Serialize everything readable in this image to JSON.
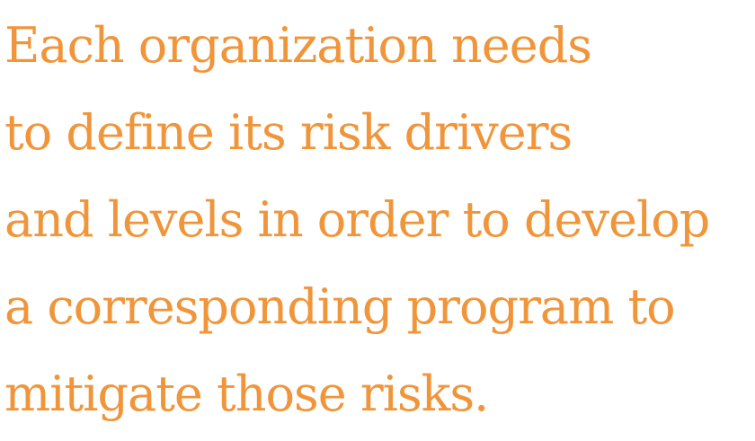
{
  "quote": {
    "lines": [
      "Each organization needs",
      "to define its risk drivers",
      "and levels in order to develop",
      "a corresponding program to",
      "mitigate those risks."
    ]
  },
  "colors": {
    "text": "#f0953a",
    "background": "#ffffff"
  }
}
